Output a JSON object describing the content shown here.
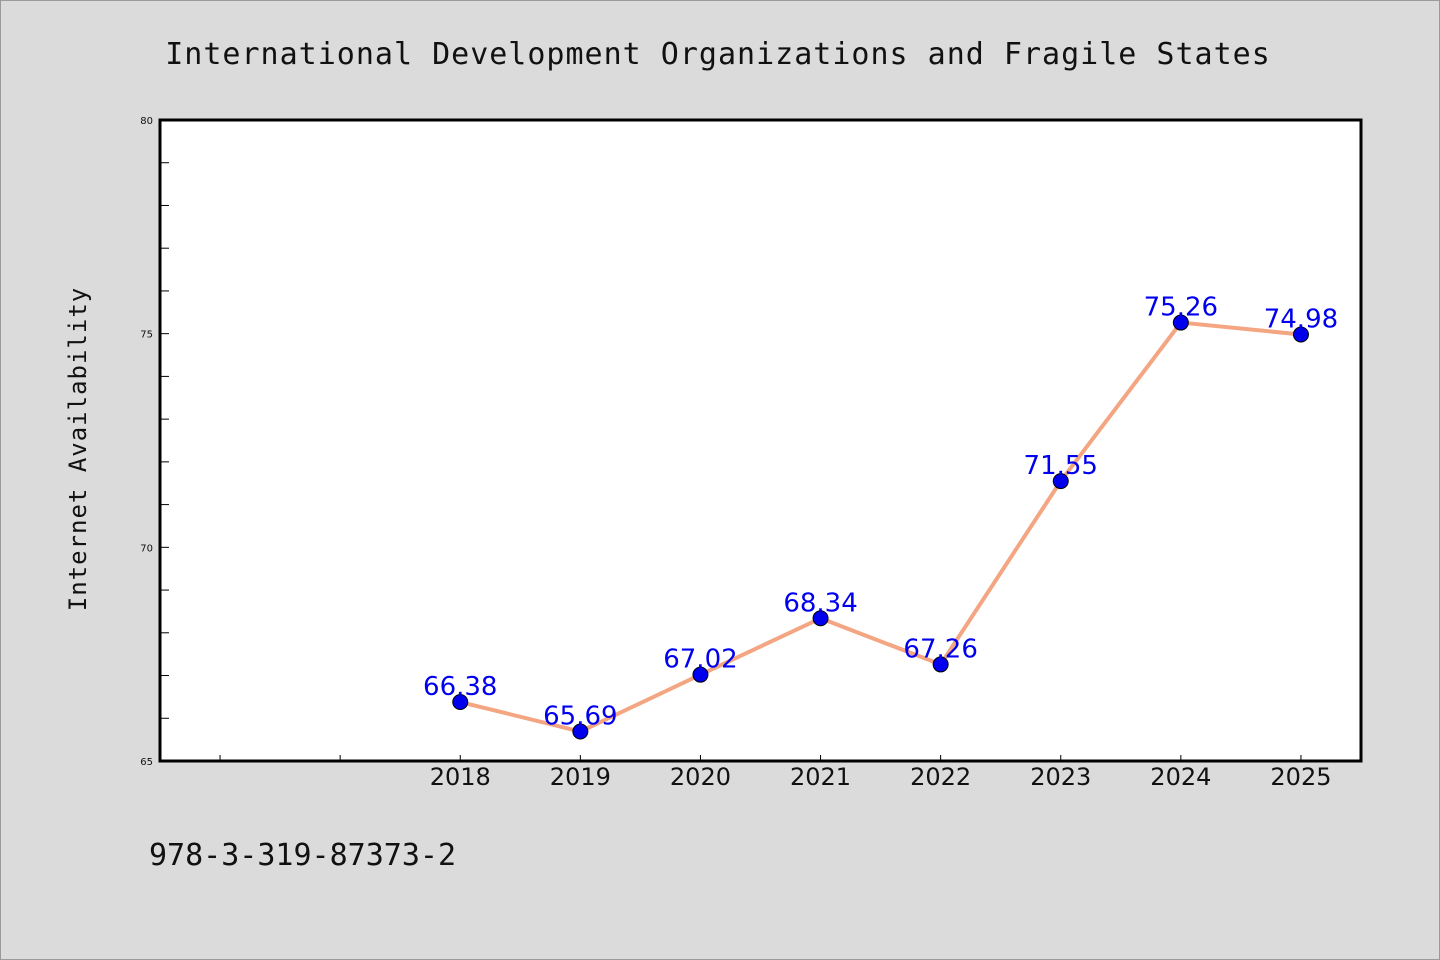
{
  "chart_data": {
    "type": "line",
    "title": "International Development Organizations and Fragile States",
    "xlabel": "",
    "ylabel": "Internet Availability",
    "categories": [
      "2018",
      "2019",
      "2020",
      "2021",
      "2022",
      "2023",
      "2024",
      "2025"
    ],
    "series": [
      {
        "values": [
          66.38,
          65.69,
          67.02,
          68.34,
          67.26,
          71.55,
          75.26,
          74.98
        ],
        "data_labels": [
          "66.38",
          "65.69",
          "67.02",
          "68.34",
          "67.26",
          "71.55",
          "75.26",
          "74.98"
        ],
        "line_color": "#f4a582",
        "marker_color": "#0000ee"
      }
    ],
    "ylim": [
      65,
      80
    ],
    "yticks": [
      "65",
      "70",
      "75",
      "80"
    ],
    "grid": false,
    "legend": "none",
    "plot_background": "#ffffff",
    "page_background": "#dbdbdb"
  },
  "footer": {
    "isbn": "978-3-319-87373-2"
  }
}
